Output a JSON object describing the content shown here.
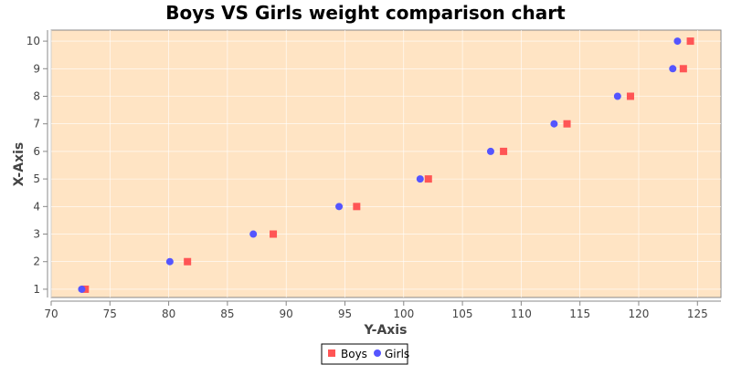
{
  "chart_data": {
    "type": "scatter",
    "title": "Boys VS Girls weight comparison chart",
    "xlabel": "Y-Axis",
    "ylabel": "X-Axis",
    "xlim": [
      70,
      127
    ],
    "ylim": [
      0.7,
      10.4
    ],
    "x_ticks": [
      70,
      75,
      80,
      85,
      90,
      95,
      100,
      105,
      110,
      115,
      120,
      125
    ],
    "y_ticks": [
      1,
      2,
      3,
      4,
      5,
      6,
      7,
      8,
      9,
      10
    ],
    "grid": true,
    "legend_position": "bottom-center",
    "plot_background": "#FFE4C4",
    "series": [
      {
        "name": "Boys",
        "marker": "square",
        "color": "#FF5555",
        "points": [
          [
            72.9,
            1
          ],
          [
            81.6,
            2
          ],
          [
            88.9,
            3
          ],
          [
            96.0,
            4
          ],
          [
            102.1,
            5
          ],
          [
            108.5,
            6
          ],
          [
            113.9,
            7
          ],
          [
            119.3,
            8
          ],
          [
            123.8,
            9
          ],
          [
            124.4,
            10
          ]
        ]
      },
      {
        "name": "Girls",
        "marker": "circle",
        "color": "#5555FF",
        "points": [
          [
            72.6,
            1
          ],
          [
            80.1,
            2
          ],
          [
            87.2,
            3
          ],
          [
            94.5,
            4
          ],
          [
            101.4,
            5
          ],
          [
            107.4,
            6
          ],
          [
            112.8,
            7
          ],
          [
            118.2,
            8
          ],
          [
            122.9,
            9
          ],
          [
            123.3,
            10
          ]
        ]
      }
    ]
  }
}
